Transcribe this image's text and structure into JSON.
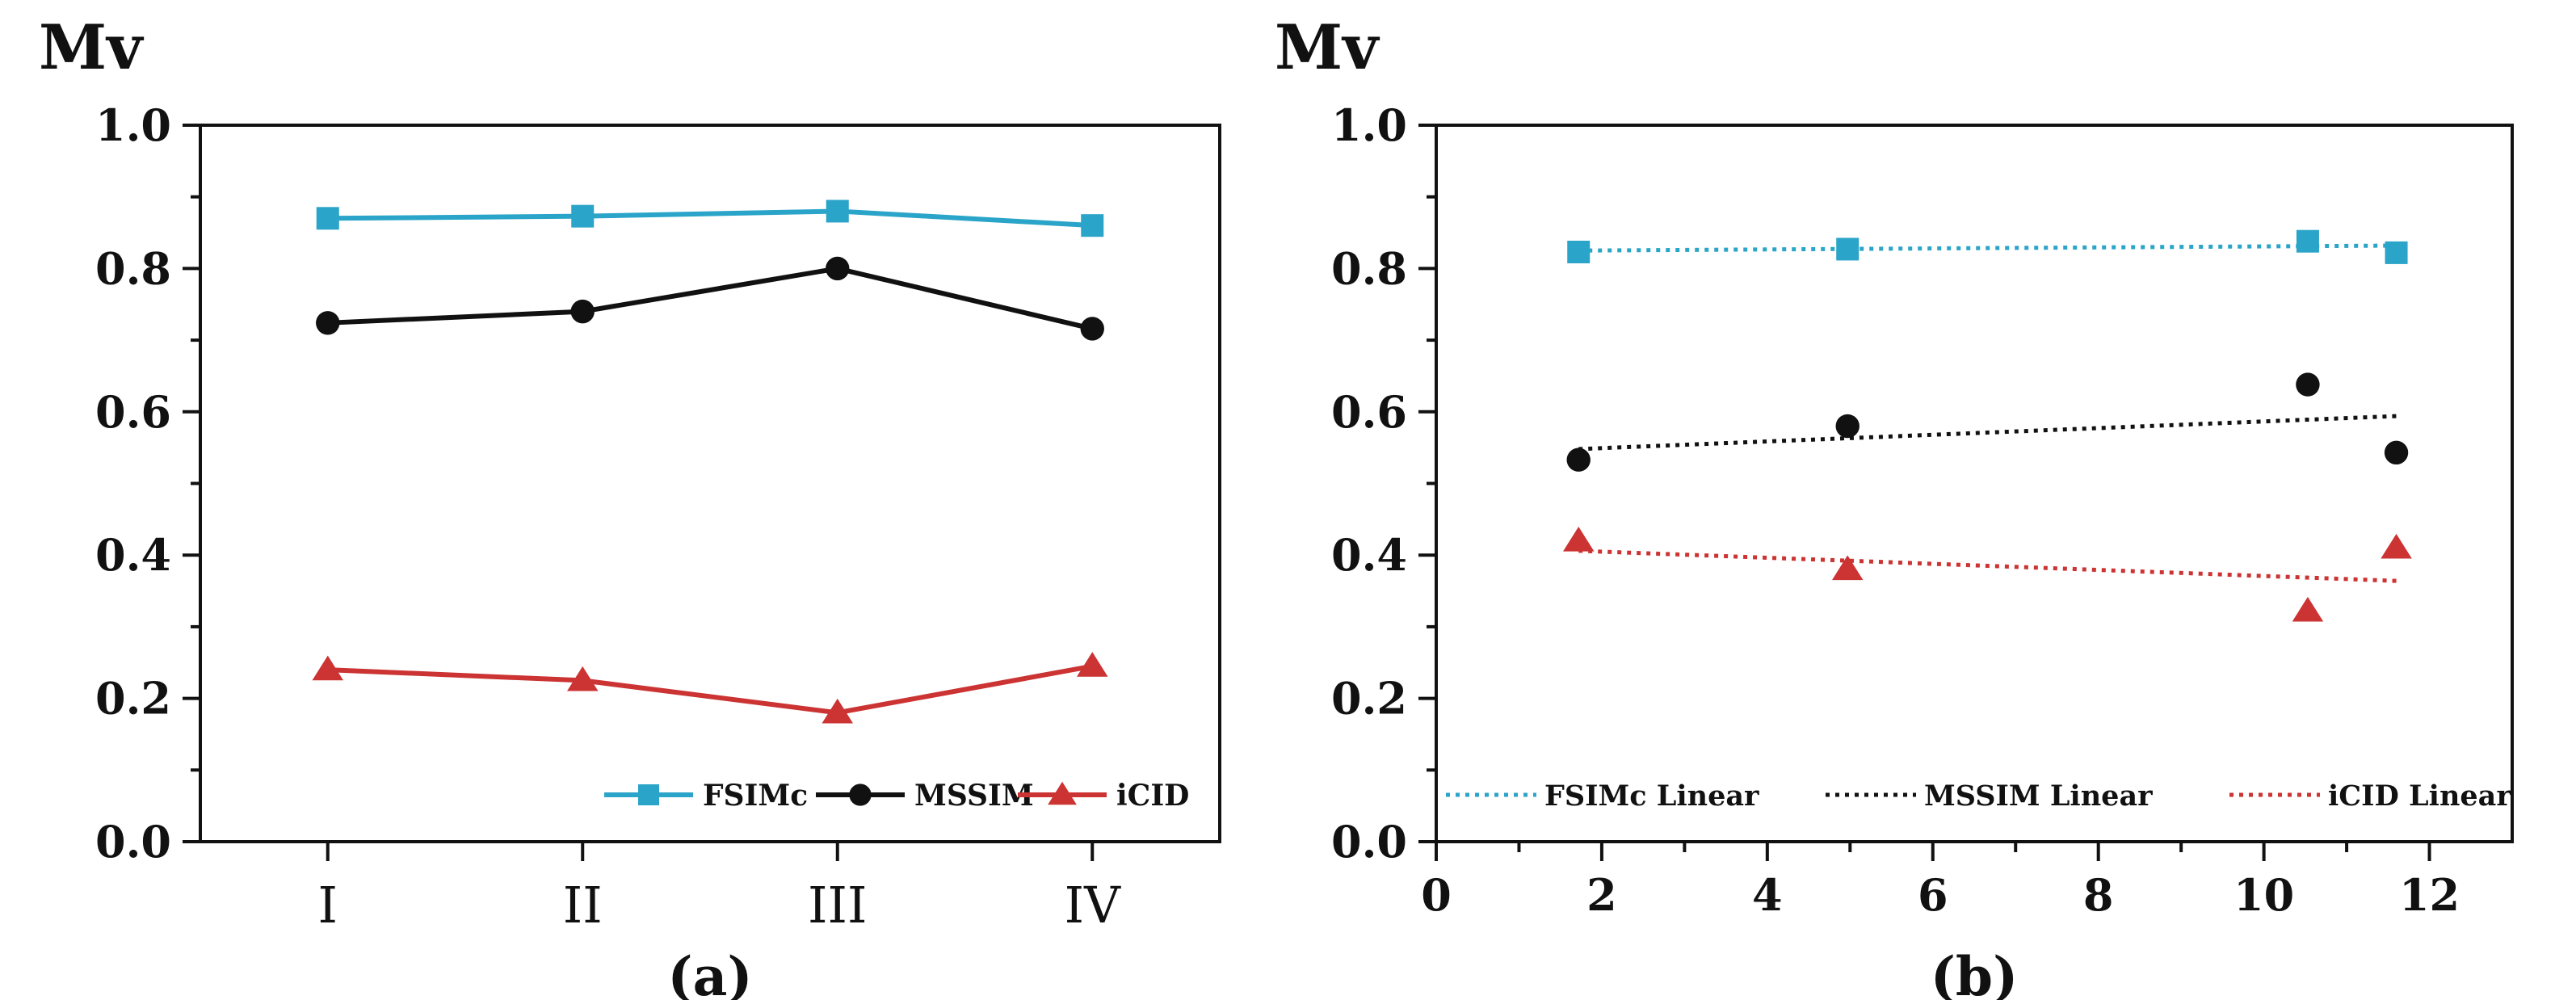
{
  "colors": {
    "fsimc": "#2aa4c8",
    "mssim": "#111111",
    "icid": "#cc3333"
  },
  "chart_data": [
    {
      "type": "line",
      "caption": "(a)",
      "ylabel": "Mv",
      "xlabel": "",
      "categories": [
        "I",
        "II",
        "III",
        "IV"
      ],
      "ylim": [
        0.0,
        1.0
      ],
      "yticks": [
        "0.0",
        "0.2",
        "0.4",
        "0.6",
        "0.8",
        "1.0"
      ],
      "legend_position": "bottom-right",
      "series": [
        {
          "name": "FSIMc",
          "key": "fsimc",
          "marker": "square",
          "values": [
            0.87,
            0.873,
            0.88,
            0.86
          ]
        },
        {
          "name": "MSSIM",
          "key": "mssim",
          "marker": "circle",
          "values": [
            0.724,
            0.74,
            0.8,
            0.716
          ]
        },
        {
          "name": "iCID",
          "key": "icid",
          "marker": "triangle",
          "values": [
            0.24,
            0.225,
            0.18,
            0.245
          ]
        }
      ]
    },
    {
      "type": "scatter",
      "caption": "(b)",
      "ylabel": "Mv",
      "xlabel": "",
      "xlim": [
        0,
        13
      ],
      "xticks": [
        "0",
        "2",
        "4",
        "6",
        "8",
        "10",
        "12"
      ],
      "ylim": [
        0.0,
        1.0
      ],
      "yticks": [
        "0.0",
        "0.2",
        "0.4",
        "0.6",
        "0.8",
        "1.0"
      ],
      "legend_position": "bottom",
      "x": [
        1.72,
        4.97,
        10.53,
        11.6
      ],
      "series": [
        {
          "name": "FSIMc",
          "key": "fsimc",
          "marker": "square",
          "values": [
            0.823,
            0.827,
            0.838,
            0.822
          ],
          "trend": [
            0.825,
            0.832
          ],
          "trend_name": "FSIMc Linear"
        },
        {
          "name": "MSSIM",
          "key": "mssim",
          "marker": "circle",
          "values": [
            0.533,
            0.58,
            0.638,
            0.543
          ],
          "trend": [
            0.548,
            0.594
          ],
          "trend_name": "MSSIM Linear"
        },
        {
          "name": "iCID",
          "key": "icid",
          "marker": "triangle",
          "values": [
            0.42,
            0.38,
            0.322,
            0.41
          ],
          "trend": [
            0.406,
            0.364
          ],
          "trend_name": "iCID Linear"
        }
      ]
    }
  ]
}
